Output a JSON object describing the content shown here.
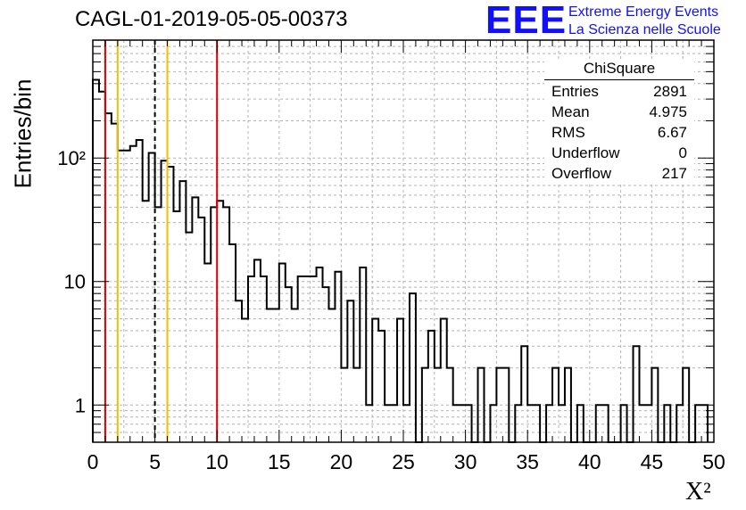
{
  "page_title": "CAGL-01-2019-05-05-00373",
  "logo": {
    "mark": "EEE",
    "line1": "Extreme Energy Events",
    "line2": "La Scienza nelle Scuole",
    "color": "#1010ff"
  },
  "stats": {
    "title": "ChiSquare",
    "rows": [
      {
        "key": "Entries",
        "value": "2891"
      },
      {
        "key": "Mean",
        "value": "4.975"
      },
      {
        "key": "RMS",
        "value": "6.67"
      },
      {
        "key": "Underflow",
        "value": "0"
      },
      {
        "key": "Overflow",
        "value": "217"
      }
    ]
  },
  "chart_data": {
    "type": "histogram",
    "ylabel": "Entries/bin",
    "xlabel": "X²",
    "xlim": [
      0,
      50
    ],
    "ylim": [
      0.5,
      900
    ],
    "y_scale": "log",
    "grid": true,
    "bin_width": 0.5,
    "x_ticks": [
      "0",
      "5",
      "10",
      "15",
      "20",
      "25",
      "30",
      "35",
      "40",
      "45",
      "50"
    ],
    "y_ticks": [
      "1",
      "10",
      "10²"
    ],
    "y_tick_values": [
      1,
      10,
      100
    ],
    "counts": [
      430,
      345,
      230,
      190,
      115,
      115,
      125,
      140,
      45,
      110,
      40,
      95,
      85,
      37,
      65,
      25,
      48,
      33,
      14,
      40,
      45,
      40,
      20,
      7,
      5,
      11,
      15,
      11,
      6,
      6,
      14,
      9,
      6,
      11,
      11,
      11,
      13,
      9,
      6,
      12,
      2,
      7,
      2,
      13,
      1,
      5,
      4,
      1,
      1,
      5,
      1,
      8,
      0,
      2,
      4,
      2,
      5,
      2,
      1,
      1,
      1,
      0,
      2,
      0,
      1,
      2,
      2,
      0,
      1,
      3,
      1,
      1,
      0,
      1,
      2,
      1,
      2,
      0,
      1,
      0,
      0,
      1,
      1,
      0,
      0,
      1,
      0,
      3,
      1,
      1,
      2,
      0,
      1,
      0,
      1,
      2,
      0,
      1,
      1
    ],
    "vlines": [
      {
        "x": 1,
        "color": "#dd0000",
        "style": "solid"
      },
      {
        "x": 2,
        "color": "#f2c000",
        "style": "solid"
      },
      {
        "x": 5,
        "color": "#000000",
        "style": "dashed"
      },
      {
        "x": 6,
        "color": "#f2c000",
        "style": "solid"
      },
      {
        "x": 10,
        "color": "#dd0000",
        "style": "solid"
      }
    ]
  }
}
